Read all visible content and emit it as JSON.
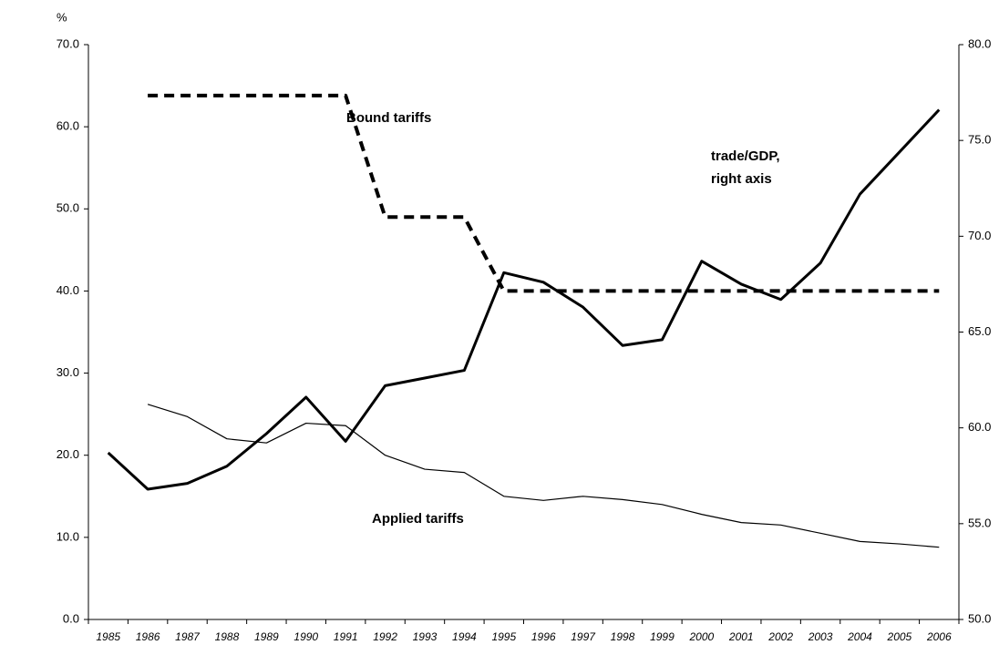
{
  "chart_data": {
    "type": "line",
    "ylabel": "%",
    "categories": [
      "1985",
      "1986",
      "1987",
      "1988",
      "1989",
      "1990",
      "1991",
      "1992",
      "1993",
      "1994",
      "1995",
      "1996",
      "1997",
      "1998",
      "1999",
      "2000",
      "2001",
      "2002",
      "2003",
      "2004",
      "2005",
      "2006"
    ],
    "series": [
      {
        "color": "#000000",
        "dash": true,
        "values": [
          null,
          63.8,
          63.8,
          63.8,
          63.8,
          63.8,
          63.8,
          49.0,
          49.0,
          49.0,
          40.0,
          40.0,
          40.0,
          40.0,
          40.0,
          40.0,
          40.0,
          40.0,
          40.0,
          40.0,
          40.0,
          40.0
        ]
      },
      {
        "color": "#000000",
        "values": [
          null,
          26.2,
          24.7,
          22.0,
          21.5,
          23.9,
          23.6,
          20.0,
          18.3,
          17.9,
          15.0,
          14.5,
          15.0,
          14.6,
          14.0,
          12.8,
          11.8,
          11.5,
          10.5,
          9.5,
          9.2,
          8.8
        ]
      },
      {
        "color": "#000000",
        "axis": "y2",
        "values": [
          58.7,
          56.8,
          57.1,
          58.0,
          59.7,
          61.6,
          59.3,
          62.2,
          62.6,
          63.0,
          68.1,
          67.6,
          66.3,
          64.3,
          64.6,
          68.7,
          67.5,
          66.7,
          68.6,
          72.2,
          74.4,
          76.6
        ]
      }
    ],
    "annotations": [
      "Bound tariffs",
      "trade/GDP,",
      "right axis",
      "Applied tariffs"
    ],
    "ylim": [
      0,
      70
    ],
    "yticks": [
      {
        "value": 0,
        "label": "0.0"
      },
      {
        "value": 10,
        "label": "10.0"
      },
      {
        "value": 20,
        "label": "20.0"
      },
      {
        "value": 30,
        "label": "30.0"
      },
      {
        "value": 40,
        "label": "40.0"
      },
      {
        "value": 50,
        "label": "50.0"
      },
      {
        "value": 60,
        "label": "60.0"
      },
      {
        "value": 70,
        "label": "70.0"
      }
    ],
    "y2lim": [
      50,
      80
    ],
    "y2ticks": [
      {
        "value": 50,
        "label": "50.0"
      },
      {
        "value": 55,
        "label": "55.0"
      },
      {
        "value": 60,
        "label": "60.0"
      },
      {
        "value": 65,
        "label": "65.0"
      },
      {
        "value": 70,
        "label": "70.0"
      },
      {
        "value": 75,
        "label": "75.0"
      },
      {
        "value": 80,
        "label": "80.0"
      }
    ],
    "grid": false
  }
}
